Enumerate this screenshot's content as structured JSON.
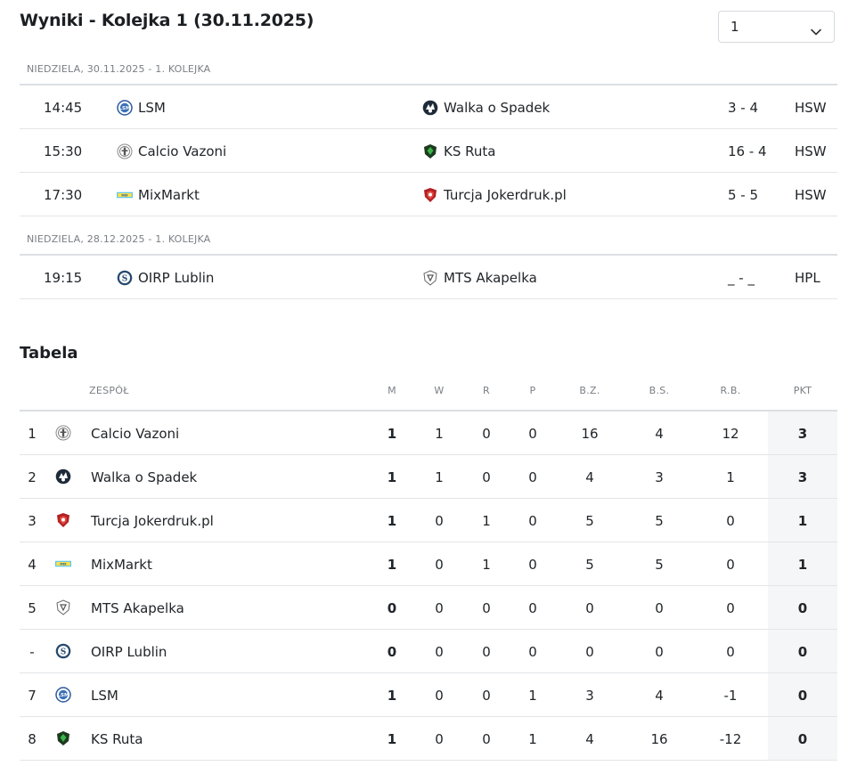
{
  "header": {
    "title": "Wyniki - Kolejka 1 (30.11.2025)",
    "round_select": {
      "value": "1"
    }
  },
  "schedule": [
    {
      "day_label": "NIEDZIELA, 30.11.2025 - 1. KOLEJKA",
      "matches": [
        {
          "time": "14:45",
          "home": "LSM",
          "home_icon": "lsm-crest-icon",
          "away": "Walka o Spadek",
          "away_icon": "walka-o-spadek-crest-icon",
          "score": "3 - 4",
          "venue": "HSW"
        },
        {
          "time": "15:30",
          "home": "Calcio Vazoni",
          "home_icon": "calcio-vazoni-crest-icon",
          "away": "KS Ruta",
          "away_icon": "ks-ruta-crest-icon",
          "score": "16 - 4",
          "venue": "HSW"
        },
        {
          "time": "17:30",
          "home": "MixMarkt",
          "home_icon": "mixmarkt-logo-icon",
          "away": "Turcja Jokerdruk.pl",
          "away_icon": "turcja-crest-icon",
          "score": "5 - 5",
          "venue": "HSW"
        }
      ]
    },
    {
      "day_label": "NIEDZIELA, 28.12.2025 - 1. KOLEJKA",
      "matches": [
        {
          "time": "19:15",
          "home": "OIRP Lublin",
          "home_icon": "oirp-crest-icon",
          "away": "MTS Akapelka",
          "away_icon": "mts-akapelka-crest-icon",
          "score": "_ - _",
          "venue": "HPL"
        }
      ]
    }
  ],
  "table": {
    "title": "Tabela",
    "columns": {
      "team": "ZESPÓŁ",
      "m": "M",
      "w": "W",
      "r": "R",
      "p": "P",
      "bz": "B.Z.",
      "bs": "B.S.",
      "rb": "R.B.",
      "pkt": "PKT"
    },
    "rows": [
      {
        "pos": "1",
        "team": "Calcio Vazoni",
        "icon": "calcio-vazoni-crest-icon",
        "m": "1",
        "w": "1",
        "r": "0",
        "p": "0",
        "bz": "16",
        "bs": "4",
        "rb": "12",
        "pkt": "3"
      },
      {
        "pos": "2",
        "team": "Walka o Spadek",
        "icon": "walka-o-spadek-crest-icon",
        "m": "1",
        "w": "1",
        "r": "0",
        "p": "0",
        "bz": "4",
        "bs": "3",
        "rb": "1",
        "pkt": "3"
      },
      {
        "pos": "3",
        "team": "Turcja Jokerdruk.pl",
        "icon": "turcja-crest-icon",
        "m": "1",
        "w": "0",
        "r": "1",
        "p": "0",
        "bz": "5",
        "bs": "5",
        "rb": "0",
        "pkt": "1"
      },
      {
        "pos": "4",
        "team": "MixMarkt",
        "icon": "mixmarkt-logo-icon",
        "m": "1",
        "w": "0",
        "r": "1",
        "p": "0",
        "bz": "5",
        "bs": "5",
        "rb": "0",
        "pkt": "1"
      },
      {
        "pos": "5",
        "team": "MTS Akapelka",
        "icon": "mts-akapelka-crest-icon",
        "m": "0",
        "w": "0",
        "r": "0",
        "p": "0",
        "bz": "0",
        "bs": "0",
        "rb": "0",
        "pkt": "0"
      },
      {
        "pos": "-",
        "team": "OIRP Lublin",
        "icon": "oirp-crest-icon",
        "m": "0",
        "w": "0",
        "r": "0",
        "p": "0",
        "bz": "0",
        "bs": "0",
        "rb": "0",
        "pkt": "0"
      },
      {
        "pos": "7",
        "team": "LSM",
        "icon": "lsm-crest-icon",
        "m": "1",
        "w": "0",
        "r": "0",
        "p": "1",
        "bz": "3",
        "bs": "4",
        "rb": "-1",
        "pkt": "0"
      },
      {
        "pos": "8",
        "team": "KS Ruta",
        "icon": "ks-ruta-crest-icon",
        "m": "1",
        "w": "0",
        "r": "0",
        "p": "1",
        "bz": "4",
        "bs": "16",
        "rb": "-12",
        "pkt": "0"
      }
    ]
  },
  "colors": {
    "text": "#212529",
    "muted": "#7a7f85",
    "border": "#e3e5e8",
    "pkt_bg": "#f5f6f7"
  }
}
